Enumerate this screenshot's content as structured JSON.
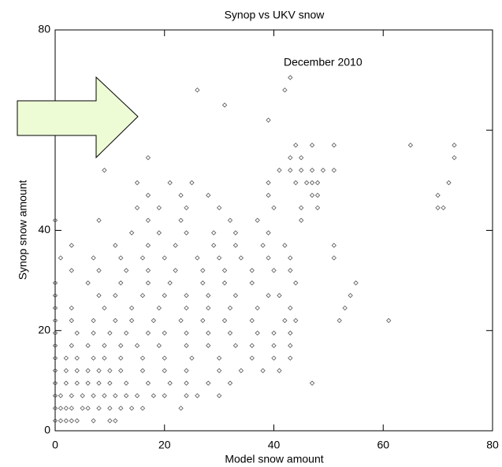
{
  "chart_data": {
    "type": "scatter",
    "title": "Synop vs UKV snow",
    "x_label": "Model snow amount",
    "y_label": "Synop snow amount",
    "annotation": "December 2010",
    "color": "#555555",
    "xlim": [
      0,
      80
    ],
    "ylim": [
      0,
      80
    ],
    "xticks": [
      0,
      20,
      40,
      60,
      80
    ],
    "yticks": [
      0,
      20,
      40,
      60,
      80
    ],
    "x": [
      0,
      1,
      2,
      3,
      4,
      7,
      10,
      11,
      0,
      1,
      2,
      3,
      5,
      6,
      8,
      10,
      12,
      14,
      16,
      23,
      0,
      1,
      3,
      5,
      7,
      9,
      11,
      13,
      15,
      18,
      20,
      24,
      26,
      30,
      0,
      2,
      4,
      6,
      8,
      10,
      13,
      17,
      21,
      24,
      28,
      32,
      47,
      0,
      2,
      4,
      6,
      8,
      10,
      12,
      16,
      20,
      24,
      30,
      34,
      38,
      41,
      0,
      2,
      4,
      7,
      9,
      12,
      16,
      20,
      25,
      30,
      36,
      40,
      43,
      0,
      3,
      6,
      9,
      12,
      15,
      19,
      24,
      28,
      33,
      36,
      40,
      43,
      0,
      4,
      7,
      10,
      13,
      17,
      20,
      24,
      28,
      32,
      37,
      40,
      43,
      0,
      3,
      7,
      11,
      14,
      18,
      23,
      27,
      31,
      36,
      42,
      44,
      52,
      61,
      0,
      3,
      9,
      14,
      19,
      24,
      28,
      32,
      37,
      43,
      53,
      0,
      8,
      11,
      16,
      20,
      24,
      28,
      33,
      39,
      41,
      54,
      0,
      6,
      12,
      17,
      21,
      27,
      31,
      36,
      44,
      55,
      3,
      8,
      13,
      17,
      22,
      27,
      31,
      36,
      40,
      43,
      1,
      7,
      12,
      16,
      20,
      26,
      30,
      34,
      39,
      43,
      51,
      3,
      11,
      17,
      22,
      29,
      33,
      38,
      42,
      51,
      14,
      19,
      24,
      29,
      33,
      39,
      0,
      8,
      17,
      23,
      32,
      37,
      45,
      15,
      19,
      24,
      30,
      40,
      45,
      48,
      70,
      71,
      17,
      23,
      28,
      39,
      47,
      48,
      70,
      15,
      21,
      25,
      39,
      44,
      46,
      47,
      48,
      72,
      9,
      41,
      43,
      45,
      47,
      49,
      51,
      17,
      43,
      45,
      73,
      44,
      47,
      51,
      65,
      73,
      39,
      31,
      26,
      42,
      43
    ],
    "values": [
      2,
      2,
      2,
      2,
      2,
      2,
      2,
      2,
      4.5,
      4.5,
      4.5,
      4.5,
      4.5,
      4.5,
      4.5,
      4.5,
      4.5,
      4.5,
      4.5,
      4.5,
      7,
      7,
      7,
      7,
      7,
      7,
      7,
      7,
      7,
      7,
      7,
      7,
      7,
      7,
      9.5,
      9.5,
      9.5,
      9.5,
      9.5,
      9.5,
      9.5,
      9.5,
      9.5,
      9.5,
      9.5,
      9.5,
      9.5,
      12,
      12,
      12,
      12,
      12,
      12,
      12,
      12,
      12,
      12,
      12,
      12,
      12,
      12,
      14.5,
      14.5,
      14.5,
      14.5,
      14.5,
      14.5,
      14.5,
      14.5,
      14.5,
      14.5,
      14.5,
      14.5,
      14.5,
      17,
      17,
      17,
      17,
      17,
      17,
      17,
      17,
      17,
      17,
      17,
      17,
      17,
      19.5,
      19.5,
      19.5,
      19.5,
      19.5,
      19.5,
      19.5,
      19.5,
      19.5,
      19.5,
      19.5,
      19.5,
      19.5,
      22,
      22,
      22,
      22,
      22,
      22,
      22,
      22,
      22,
      22,
      22,
      22,
      22,
      22,
      24.5,
      24.5,
      24.5,
      24.5,
      24.5,
      24.5,
      24.5,
      24.5,
      24.5,
      24.5,
      24.5,
      27,
      27,
      27,
      27,
      27,
      27,
      27,
      27,
      27,
      27,
      27,
      29.5,
      29.5,
      29.5,
      29.5,
      29.5,
      29.5,
      29.5,
      29.5,
      29.5,
      29.5,
      32,
      32,
      32,
      32,
      32,
      32,
      32,
      32,
      32,
      32,
      34.5,
      34.5,
      34.5,
      34.5,
      34.5,
      34.5,
      34.5,
      34.5,
      34.5,
      34.5,
      34.5,
      37,
      37,
      37,
      37,
      37,
      37,
      37,
      37,
      37,
      39.5,
      39.5,
      39.5,
      39.5,
      39.5,
      39.5,
      42,
      42,
      42,
      42,
      42,
      42,
      42,
      44.5,
      44.5,
      44.5,
      44.5,
      44.5,
      44.5,
      44.5,
      44.5,
      44.5,
      47,
      47,
      47,
      47,
      47,
      47,
      47,
      49.5,
      49.5,
      49.5,
      49.5,
      49.5,
      49.5,
      49.5,
      49.5,
      49.5,
      52,
      52,
      52,
      52,
      52,
      52,
      52,
      54.5,
      54.5,
      54.5,
      54.5,
      57,
      57,
      57,
      57,
      57,
      62,
      65,
      68,
      68,
      70.5
    ]
  }
}
